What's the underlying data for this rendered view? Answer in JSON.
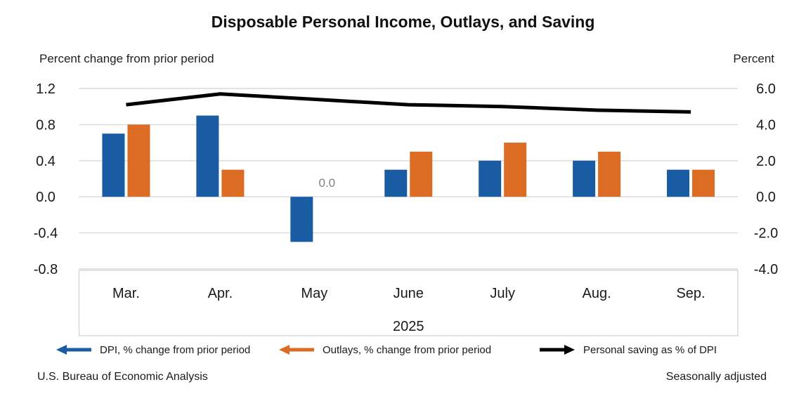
{
  "title": "Disposable Personal Income, Outlays, and Saving",
  "axes": {
    "left_title": "Percent change from prior period",
    "right_title": "Percent"
  },
  "footer": {
    "source": "U.S. Bureau of Economic Analysis",
    "note": "Seasonally adjusted"
  },
  "colors": {
    "dpi_blue": "#1A5CA3",
    "outlays_orange": "#DC6B23",
    "saving_black": "#000000",
    "gridline": "#D9D9D9",
    "frame": "#D9D9D9",
    "annotation_gray": "#808080",
    "text": "#1A1A1A"
  },
  "legend": {
    "items": [
      {
        "label": "DPI, % change from prior period",
        "color": "#1A5CA3",
        "arrow_direction": "left"
      },
      {
        "label": "Outlays, % change from prior period",
        "color": "#DC6B23",
        "arrow_direction": "left"
      },
      {
        "label": "Personal saving as % of DPI",
        "color": "#000000",
        "arrow_direction": "right"
      }
    ]
  },
  "chart_data": {
    "type": "bar",
    "subtype": "grouped-bars-with-line-overlay",
    "categories": [
      "Mar.",
      "Apr.",
      "May",
      "June",
      "July",
      "Aug.",
      "Sep."
    ],
    "period_label": "2025",
    "series": [
      {
        "name": "DPI, % change from prior period",
        "kind": "bar",
        "axis": "left",
        "color": "#1A5CA3",
        "values": [
          0.7,
          0.9,
          -0.5,
          0.3,
          0.4,
          0.4,
          0.3
        ]
      },
      {
        "name": "Outlays, % change from prior period",
        "kind": "bar",
        "axis": "left",
        "color": "#DC6B23",
        "values": [
          0.8,
          0.3,
          0.0,
          0.5,
          0.6,
          0.5,
          0.3
        ]
      },
      {
        "name": "Personal saving as % of DPI",
        "kind": "line",
        "axis": "right",
        "color": "#000000",
        "values": [
          5.1,
          5.7,
          5.4,
          5.1,
          5.0,
          4.8,
          4.7
        ]
      }
    ],
    "left_axis": {
      "title": "Percent change from prior period",
      "min": -0.8,
      "max": 1.2,
      "tick_labels": [
        "1.2",
        "0.8",
        "0.4",
        "0.0",
        "-0.4",
        "-0.8"
      ],
      "tick_values": [
        1.2,
        0.8,
        0.4,
        0.0,
        -0.4,
        -0.8
      ]
    },
    "right_axis": {
      "title": "Percent",
      "min": -4.0,
      "max": 6.0,
      "tick_labels": [
        "6.0",
        "4.0",
        "2.0",
        "0.0",
        "-2.0",
        "-4.0"
      ],
      "tick_values": [
        6.0,
        4.0,
        2.0,
        0.0,
        -2.0,
        -4.0
      ]
    },
    "annotations": [
      {
        "text": "0.0",
        "series": "Outlays, % change from prior period",
        "category": "May"
      }
    ],
    "grid": true,
    "legend_position": "bottom",
    "seasonally_adjusted": true
  }
}
